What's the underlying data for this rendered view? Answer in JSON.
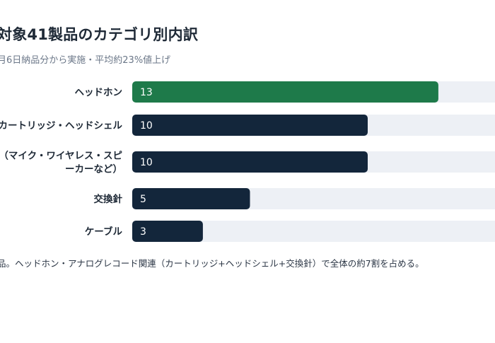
{
  "header": {
    "title": "対象41製品のカテゴリ別内訳",
    "subtitle": "月6日納品分から実施・平均約23%値上げ"
  },
  "note": "品。ヘッドホン・アナログレコード関連（カートリッジ+ヘッドシェル+交換針）で全体の約7割を占める。",
  "colors": {
    "highlight": "#1e7a4a",
    "bar": "#13263b",
    "track": "#edf0f5"
  },
  "chart_data": {
    "type": "bar",
    "orientation": "horizontal",
    "title": "対象41製品のカテゴリ別内訳",
    "subtitle": "月6日納品分から実施・平均約23%値上げ",
    "categories": [
      [
        "ヘッドホン"
      ],
      [
        "カートリッジ・ヘッドシェル"
      ],
      [
        "器（マイク・ワイヤレス・スピ",
        "ーカーなど）"
      ],
      [
        "交換針"
      ],
      [
        "ケーブル"
      ]
    ],
    "values": [
      13,
      10,
      10,
      5,
      3
    ],
    "xlim": [
      0,
      18
    ],
    "highlight_index": 0,
    "grid": false,
    "legend": "none"
  }
}
